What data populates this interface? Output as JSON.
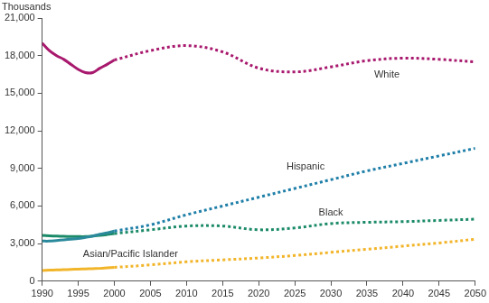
{
  "chart_data": {
    "type": "line",
    "y_label": "Thousands",
    "x": [
      1990,
      1991,
      1992,
      1993,
      1994,
      1995,
      1996,
      1997,
      1998,
      1999,
      2000,
      2005,
      2010,
      2015,
      2020,
      2025,
      2030,
      2035,
      2040,
      2045,
      2050
    ],
    "xlim": [
      1990,
      2050
    ],
    "xticks": [
      1990,
      1995,
      2000,
      2005,
      2010,
      2015,
      2020,
      2025,
      2030,
      2035,
      2040,
      2045,
      2050
    ],
    "ylim": [
      0,
      21000
    ],
    "yticks": [
      0,
      {
        "value": 3000,
        "label": "3,000"
      },
      {
        "value": 6000,
        "label": "6,000"
      },
      {
        "value": 9000,
        "label": "9,000"
      },
      {
        "value": 12000,
        "label": "12,000"
      },
      {
        "value": 15000,
        "label": "15,000"
      },
      {
        "value": 18000,
        "label": "18,000"
      },
      {
        "value": 21000,
        "label": "21,000"
      }
    ],
    "grid": false,
    "series": [
      {
        "name": "White",
        "color": "#a8196e",
        "line_style": "dotted",
        "values": [
          null,
          null,
          null,
          null,
          null,
          null,
          null,
          null,
          null,
          null,
          17650,
          18400,
          18800,
          18300,
          17000,
          16700,
          17100,
          17600,
          17800,
          17700,
          17500
        ]
      },
      {
        "name": "Hispanic",
        "color": "#1f7fa8",
        "line_style": "dotted",
        "values": [
          null,
          null,
          null,
          null,
          null,
          null,
          null,
          null,
          null,
          null,
          4000,
          4500,
          5300,
          6000,
          6700,
          7400,
          8100,
          8800,
          9400,
          10000,
          10600
        ]
      },
      {
        "name": "Black",
        "color": "#1b8a68",
        "line_style": "dotted",
        "values": [
          null,
          null,
          null,
          null,
          null,
          null,
          null,
          null,
          null,
          null,
          3800,
          4100,
          4400,
          4400,
          4100,
          4250,
          4600,
          4700,
          4750,
          4850,
          4950
        ]
      },
      {
        "name": "Asian/Pacific Islander",
        "color": "#f2b52a",
        "line_style": "dotted",
        "values": [
          null,
          null,
          null,
          null,
          null,
          null,
          null,
          null,
          null,
          null,
          1100,
          1300,
          1550,
          1700,
          1850,
          2050,
          2300,
          2550,
          2800,
          3050,
          3350
        ]
      },
      {
        "name": "White",
        "color": "#a8196e",
        "line_style": "solid",
        "values": [
          19000,
          18400,
          18000,
          17700,
          17300,
          16900,
          16650,
          16650,
          17000,
          17300,
          17650,
          null,
          null,
          null,
          null,
          null,
          null,
          null,
          null,
          null,
          null
        ]
      },
      {
        "name": "Hispanic",
        "color": "#2a8a9c",
        "line_style": "solid",
        "values": [
          3200,
          3200,
          3250,
          3300,
          3350,
          3400,
          3500,
          3600,
          3750,
          3850,
          4000,
          null,
          null,
          null,
          null,
          null,
          null,
          null,
          null,
          null,
          null
        ]
      },
      {
        "name": "Black",
        "color": "#1b8a68",
        "line_style": "solid",
        "values": [
          3650,
          3620,
          3600,
          3580,
          3570,
          3560,
          3560,
          3600,
          3650,
          3720,
          3800,
          null,
          null,
          null,
          null,
          null,
          null,
          null,
          null,
          null,
          null
        ]
      },
      {
        "name": "Asian/Pacific Islander",
        "color": "#f2b52a",
        "line_style": "solid",
        "values": [
          850,
          880,
          900,
          920,
          940,
          960,
          980,
          1000,
          1020,
          1060,
          1100,
          null,
          null,
          null,
          null,
          null,
          null,
          null,
          null,
          null,
          null
        ]
      }
    ]
  }
}
